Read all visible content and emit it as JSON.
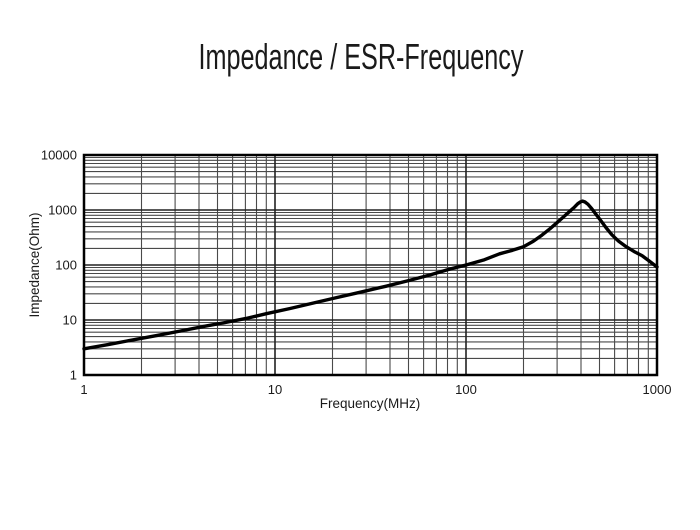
{
  "chart_data": {
    "type": "line",
    "title": "Impedance / ESR-Frequency",
    "xlabel": "Frequency(MHz)",
    "ylabel": "Impedance(Ohm)",
    "x_scale": "log",
    "y_scale": "log",
    "xlim": [
      1,
      1000
    ],
    "ylim": [
      1,
      10000
    ],
    "x_ticks": [
      {
        "v": 1,
        "label": "1"
      },
      {
        "v": 10,
        "label": "10"
      },
      {
        "v": 100,
        "label": "100"
      },
      {
        "v": 1000,
        "label": "1000"
      }
    ],
    "y_ticks": [
      {
        "v": 1,
        "label": "1"
      },
      {
        "v": 10,
        "label": "10"
      },
      {
        "v": 100,
        "label": "100"
      },
      {
        "v": 1000,
        "label": "1000"
      },
      {
        "v": 10000,
        "label": "10000"
      }
    ],
    "grid": {
      "minor_log_divisions": true,
      "full_grid": true
    },
    "legend": "none",
    "series": [
      {
        "name": "Impedance",
        "points": [
          [
            1,
            3.0
          ],
          [
            1.35,
            3.6
          ],
          [
            1.8,
            4.35
          ],
          [
            2.4,
            5.2
          ],
          [
            3.2,
            6.3
          ],
          [
            4.3,
            7.7
          ],
          [
            5.5,
            9.0
          ],
          [
            7,
            10.6
          ],
          [
            9,
            13
          ],
          [
            12,
            16.2
          ],
          [
            16,
            20.5
          ],
          [
            21,
            25.5
          ],
          [
            28,
            32
          ],
          [
            38,
            41
          ],
          [
            50,
            52
          ],
          [
            65,
            66
          ],
          [
            80,
            82
          ],
          [
            100,
            100
          ],
          [
            125,
            125
          ],
          [
            150,
            160
          ],
          [
            175,
            185
          ],
          [
            200,
            215
          ],
          [
            225,
            270
          ],
          [
            250,
            350
          ],
          [
            275,
            455
          ],
          [
            300,
            590
          ],
          [
            325,
            760
          ],
          [
            350,
            950
          ],
          [
            370,
            1130
          ],
          [
            385,
            1300
          ],
          [
            398,
            1410
          ],
          [
            408,
            1450
          ],
          [
            420,
            1400
          ],
          [
            435,
            1270
          ],
          [
            455,
            1060
          ],
          [
            480,
            830
          ],
          [
            510,
            630
          ],
          [
            540,
            480
          ],
          [
            580,
            355
          ],
          [
            630,
            270
          ],
          [
            690,
            215
          ],
          [
            760,
            175
          ],
          [
            835,
            148
          ],
          [
            910,
            118
          ],
          [
            1000,
            92
          ]
        ]
      }
    ]
  },
  "colors": {
    "background": "#ffffff",
    "text": "#1a1a1a",
    "grid_minor": "#4a4a4a",
    "grid_major": "#222222",
    "plot_border": "#000000",
    "curve": "#000000"
  }
}
